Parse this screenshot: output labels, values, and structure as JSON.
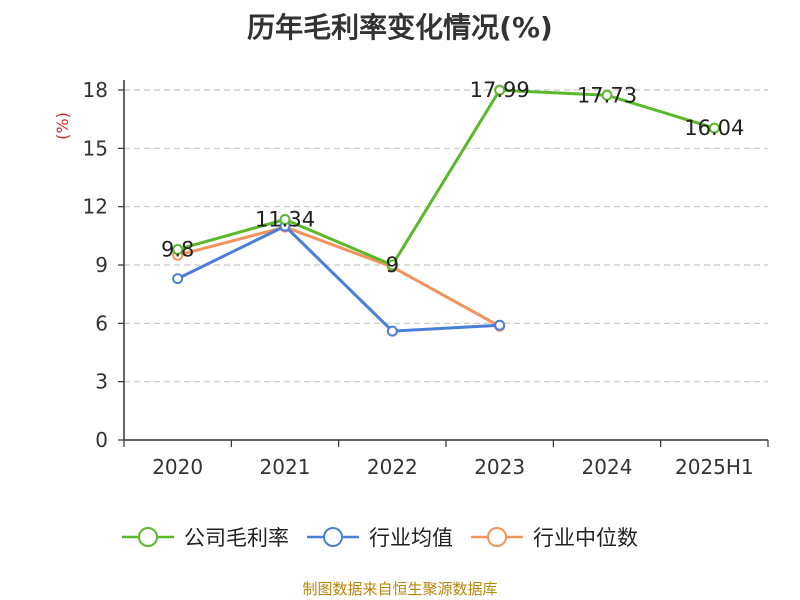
{
  "chart_data": {
    "type": "line",
    "title": "历年毛利率变化情况(%)",
    "ylabel": "(%)",
    "xlabel": "",
    "categories": [
      "2020",
      "2021",
      "2022",
      "2023",
      "2024",
      "2025H1"
    ],
    "yticks": [
      0,
      3,
      6,
      9,
      12,
      15,
      18
    ],
    "ylim": [
      0,
      18
    ],
    "grid": true,
    "legend_position": "bottom",
    "series": [
      {
        "name": "公司毛利率",
        "color": "#5ab82a",
        "values": [
          9.8,
          11.34,
          9,
          17.99,
          17.73,
          16.04
        ],
        "labels": [
          "9.8",
          "11.34",
          "9",
          "17.99",
          "17.73",
          "16.04"
        ]
      },
      {
        "name": "行业均值",
        "color": "#4a7fd8",
        "values": [
          8.3,
          11.0,
          5.6,
          5.9,
          null,
          null
        ],
        "labels": null
      },
      {
        "name": "行业中位数",
        "color": "#f2935c",
        "values": [
          9.5,
          10.95,
          8.9,
          5.85,
          null,
          null
        ],
        "labels": null
      }
    ]
  },
  "source_note": "制图数据来自恒生聚源数据库"
}
